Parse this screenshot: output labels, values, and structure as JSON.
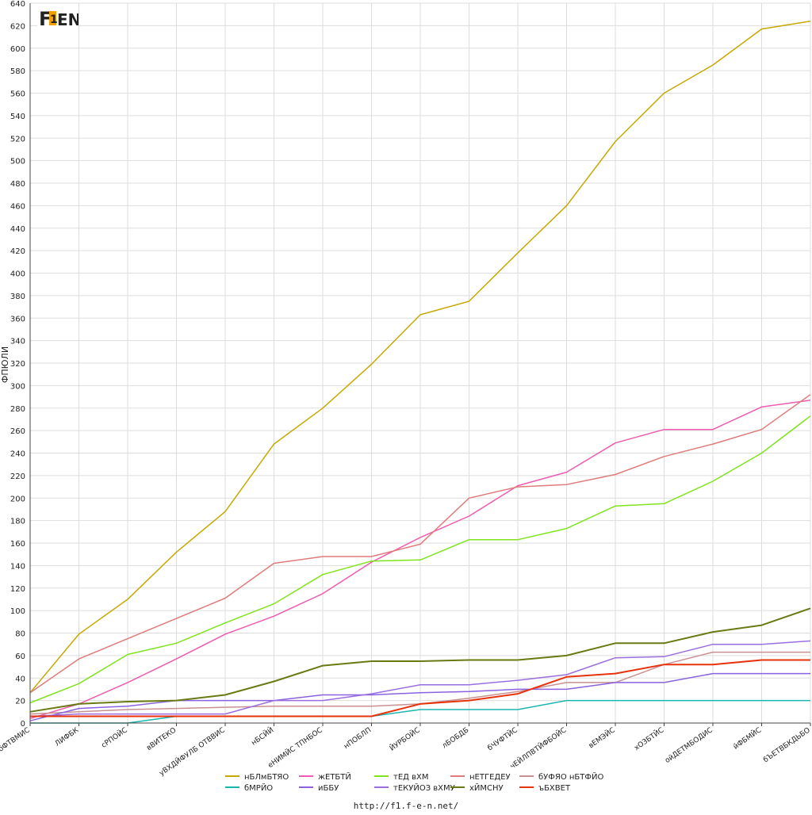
{
  "source_url": "http://f1.f-e-n.net/",
  "logo_text": "F1 EN",
  "chart_data": {
    "type": "line",
    "title": "",
    "xlabel": "",
    "ylabel": "ФПЮЛИ",
    "ylim": [
      0,
      640
    ],
    "ytick_step": 20,
    "grid": true,
    "legend_position": "bottom-center",
    "categories": [
      "бФТВМИС",
      "ЛИФБК",
      "сРПОЙС",
      "вВИТЕКО",
      "уВХДЙФУЛБ ОТВВИС",
      "нБСЙЙ",
      "еНИМЙС ТПНБОС",
      "нПОБЛП",
      "ЙУРБОЙС",
      "лБОБДБ",
      "бЧУФТЙС",
      "чЕЙЛПВТЙФБОЙС",
      "вЕМЭЙС",
      "хОЗБТЙС",
      "ойДЕТМБОДИС",
      "йФБМЙС",
      "бЪЕТВБКДЬБО"
    ],
    "series": [
      {
        "name": "нБЛмБТЯО",
        "color": "#c8a800",
        "width": 1.5,
        "values": [
          27,
          79,
          110,
          152,
          188,
          248,
          280,
          319,
          363,
          375,
          418,
          460,
          517,
          560,
          585,
          617,
          624
        ]
      },
      {
        "name": "жЕТБТЙ",
        "color": "#ef5bb0",
        "width": 1.5,
        "values": [
          4,
          17,
          36,
          57,
          79,
          95,
          115,
          143,
          165,
          184,
          211,
          223,
          249,
          261,
          261,
          281,
          287
        ]
      },
      {
        "name": "тЕД вХМ",
        "color": "#7fe41c",
        "width": 1.5,
        "values": [
          18,
          35,
          61,
          71,
          89,
          106,
          132,
          144,
          145,
          163,
          163,
          173,
          193,
          195,
          215,
          240,
          273
        ]
      },
      {
        "name": "нЕТГЕДЕУ",
        "color": "#e07b7b",
        "width": 1.5,
        "values": [
          27,
          57,
          75,
          93,
          111,
          142,
          148,
          148,
          159,
          200,
          210,
          212,
          221,
          237,
          248,
          261,
          292
        ]
      },
      {
        "name": "бУФЯО нБТФЙО",
        "color": "#c89090",
        "width": 1.5,
        "values": [
          8,
          10,
          12,
          13,
          14,
          15,
          15,
          15,
          17,
          22,
          28,
          36,
          36,
          52,
          63,
          63,
          63
        ]
      },
      {
        "name": "бМРЙО",
        "color": "#1ab6b0",
        "width": 1.5,
        "values": [
          0,
          0,
          0,
          6,
          6,
          6,
          6,
          6,
          12,
          12,
          12,
          20,
          20,
          20,
          20,
          20,
          20
        ]
      },
      {
        "name": "иББУ",
        "color": "#8a62e0",
        "width": 1.5,
        "values": [
          2,
          13,
          15,
          20,
          20,
          20,
          25,
          25,
          27,
          28,
          30,
          30,
          36,
          36,
          44,
          44,
          44
        ]
      },
      {
        "name": "тЕКУЙОЗ вХМУ",
        "color": "#9a6ee0",
        "width": 1.5,
        "values": [
          6,
          8,
          8,
          8,
          8,
          20,
          20,
          26,
          34,
          34,
          38,
          43,
          58,
          59,
          70,
          70,
          73
        ]
      },
      {
        "name": "хЙМСНУ",
        "color": "#6a7a12",
        "width": 2,
        "values": [
          10,
          17,
          19,
          20,
          25,
          37,
          51,
          55,
          55,
          56,
          56,
          60,
          71,
          71,
          81,
          87,
          102
        ]
      },
      {
        "name": "ъБХВЕТ",
        "color": "#e8320c",
        "width": 2,
        "values": [
          6,
          6,
          6,
          6,
          6,
          6,
          6,
          6,
          17,
          20,
          26,
          41,
          44,
          52,
          52,
          56,
          56
        ]
      }
    ]
  }
}
